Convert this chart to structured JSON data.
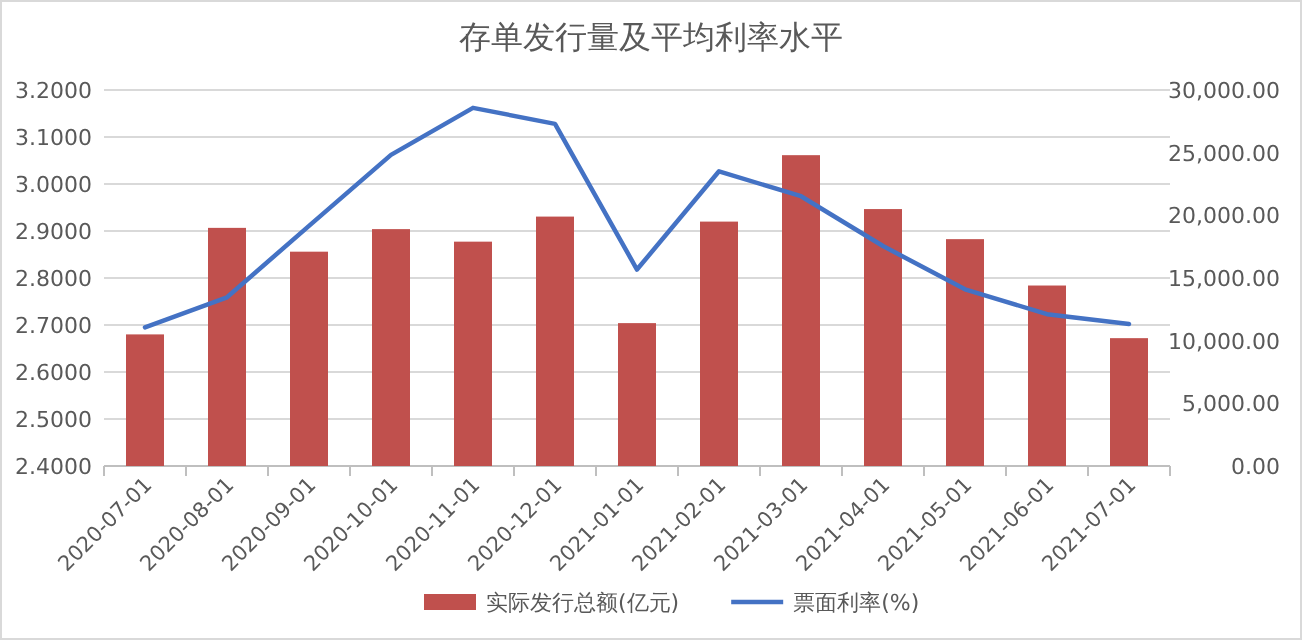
{
  "chart_data": {
    "type": "bar",
    "title": "存单发行量及平均利率水平",
    "categories": [
      "2020-07-01",
      "2020-08-01",
      "2020-09-01",
      "2020-10-01",
      "2020-11-01",
      "2020-12-01",
      "2021-01-01",
      "2021-02-01",
      "2021-03-01",
      "2021-04-01",
      "2021-05-01",
      "2021-06-01",
      "2021-07-01"
    ],
    "series": [
      {
        "name": "实际发行总额(亿元)",
        "axis": "y2",
        "color": "#c0504d",
        "values": [
          10500,
          19000,
          17100,
          18900,
          17900,
          19900,
          11400,
          19500,
          24800,
          20500,
          18100,
          14400,
          10200
        ]
      },
      {
        "name": "票面利率(%)",
        "type": "line",
        "color": "#4472c4",
        "values": [
          2.695,
          2.759,
          2.911,
          3.062,
          3.162,
          3.128,
          2.818,
          3.027,
          2.974,
          2.868,
          2.776,
          2.723,
          2.702
        ]
      }
    ],
    "ylim": [
      2.4,
      3.2
    ],
    "yticks": [
      {
        "value": 2.4,
        "label": "2.4000"
      },
      {
        "value": 2.5,
        "label": "2.5000"
      },
      {
        "value": 2.6,
        "label": "2.6000"
      },
      {
        "value": 2.7,
        "label": "2.7000"
      },
      {
        "value": 2.8,
        "label": "2.8000"
      },
      {
        "value": 2.9,
        "label": "2.9000"
      },
      {
        "value": 3.0,
        "label": "3.0000"
      },
      {
        "value": 3.1,
        "label": "3.1000"
      },
      {
        "value": 3.2,
        "label": "3.2000"
      }
    ],
    "y2lim": [
      0,
      30000
    ],
    "y2ticks": [
      {
        "value": 0,
        "label": "0.00"
      },
      {
        "value": 5000,
        "label": "5,000.00"
      },
      {
        "value": 10000,
        "label": "10,000.00"
      },
      {
        "value": 15000,
        "label": "15,000.00"
      },
      {
        "value": 20000,
        "label": "20,000.00"
      },
      {
        "value": 25000,
        "label": "25,000.00"
      },
      {
        "value": 30000,
        "label": "30,000.00"
      }
    ],
    "grid": "y",
    "legend": "bottom",
    "marker": "none",
    "line_style": "solid"
  }
}
